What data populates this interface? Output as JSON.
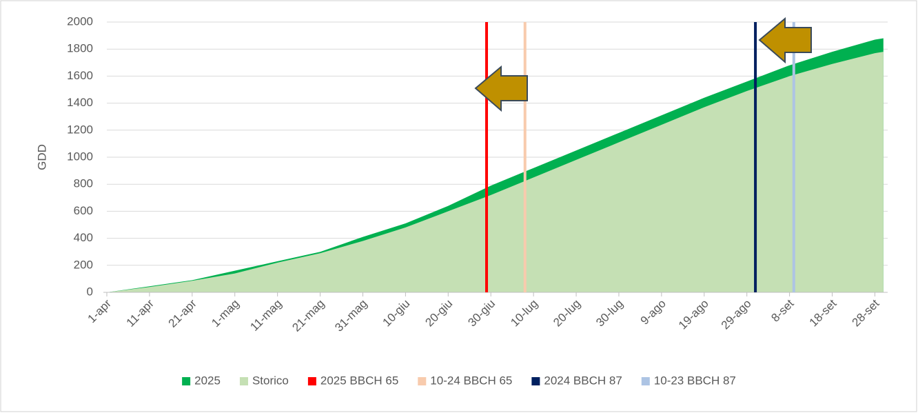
{
  "chart_data": {
    "type": "area",
    "ylabel": "GDD",
    "x": [
      0,
      10,
      20,
      30,
      40,
      50,
      60,
      70,
      80,
      90,
      100,
      110,
      120,
      130,
      140,
      150,
      160,
      170,
      180,
      182
    ],
    "series": [
      {
        "name": "2025",
        "color": "#00b050",
        "values": [
          0,
          45,
          90,
          160,
          230,
          300,
          410,
          510,
          640,
          790,
          920,
          1050,
          1180,
          1310,
          1440,
          1560,
          1680,
          1780,
          1870,
          1880
        ]
      },
      {
        "name": "Storico",
        "color": "#c5e0b4",
        "values": [
          0,
          40,
          85,
          140,
          220,
          290,
          380,
          480,
          600,
          720,
          850,
          980,
          1110,
          1240,
          1370,
          1490,
          1600,
          1690,
          1770,
          1780
        ]
      }
    ],
    "markers": [
      {
        "name": "2025 BBCH 65",
        "color": "#ff0000",
        "x": 89
      },
      {
        "name": "10-24 BBCH 65",
        "color": "#f8cbad",
        "x": 98
      },
      {
        "name": "2024 BBCH 87",
        "color": "#002060",
        "x": 152
      },
      {
        "name": "10-23 BBCH 87",
        "color": "#adc4e4",
        "x": 161
      }
    ],
    "xlim": [
      0,
      183
    ],
    "xticks": [
      {
        "value": 0,
        "label": "1-apr"
      },
      {
        "value": 10,
        "label": "11-apr"
      },
      {
        "value": 20,
        "label": "21-apr"
      },
      {
        "value": 30,
        "label": "1-mag"
      },
      {
        "value": 40,
        "label": "11-mag"
      },
      {
        "value": 50,
        "label": "21-mag"
      },
      {
        "value": 60,
        "label": "31-mag"
      },
      {
        "value": 70,
        "label": "10-giu"
      },
      {
        "value": 80,
        "label": "20-giu"
      },
      {
        "value": 90,
        "label": "30-giu"
      },
      {
        "value": 100,
        "label": "10-lug"
      },
      {
        "value": 110,
        "label": "20-lug"
      },
      {
        "value": 120,
        "label": "30-lug"
      },
      {
        "value": 130,
        "label": "9-ago"
      },
      {
        "value": 140,
        "label": "19-ago"
      },
      {
        "value": 150,
        "label": "29-ago"
      },
      {
        "value": 160,
        "label": "8-set"
      },
      {
        "value": 170,
        "label": "18-set"
      },
      {
        "value": 180,
        "label": "28-set"
      }
    ],
    "ylim": [
      0,
      2000
    ],
    "yticks": [
      0,
      200,
      400,
      600,
      800,
      1000,
      1200,
      1400,
      1600,
      1800,
      2000
    ],
    "grid": true,
    "legend": "bottom"
  }
}
